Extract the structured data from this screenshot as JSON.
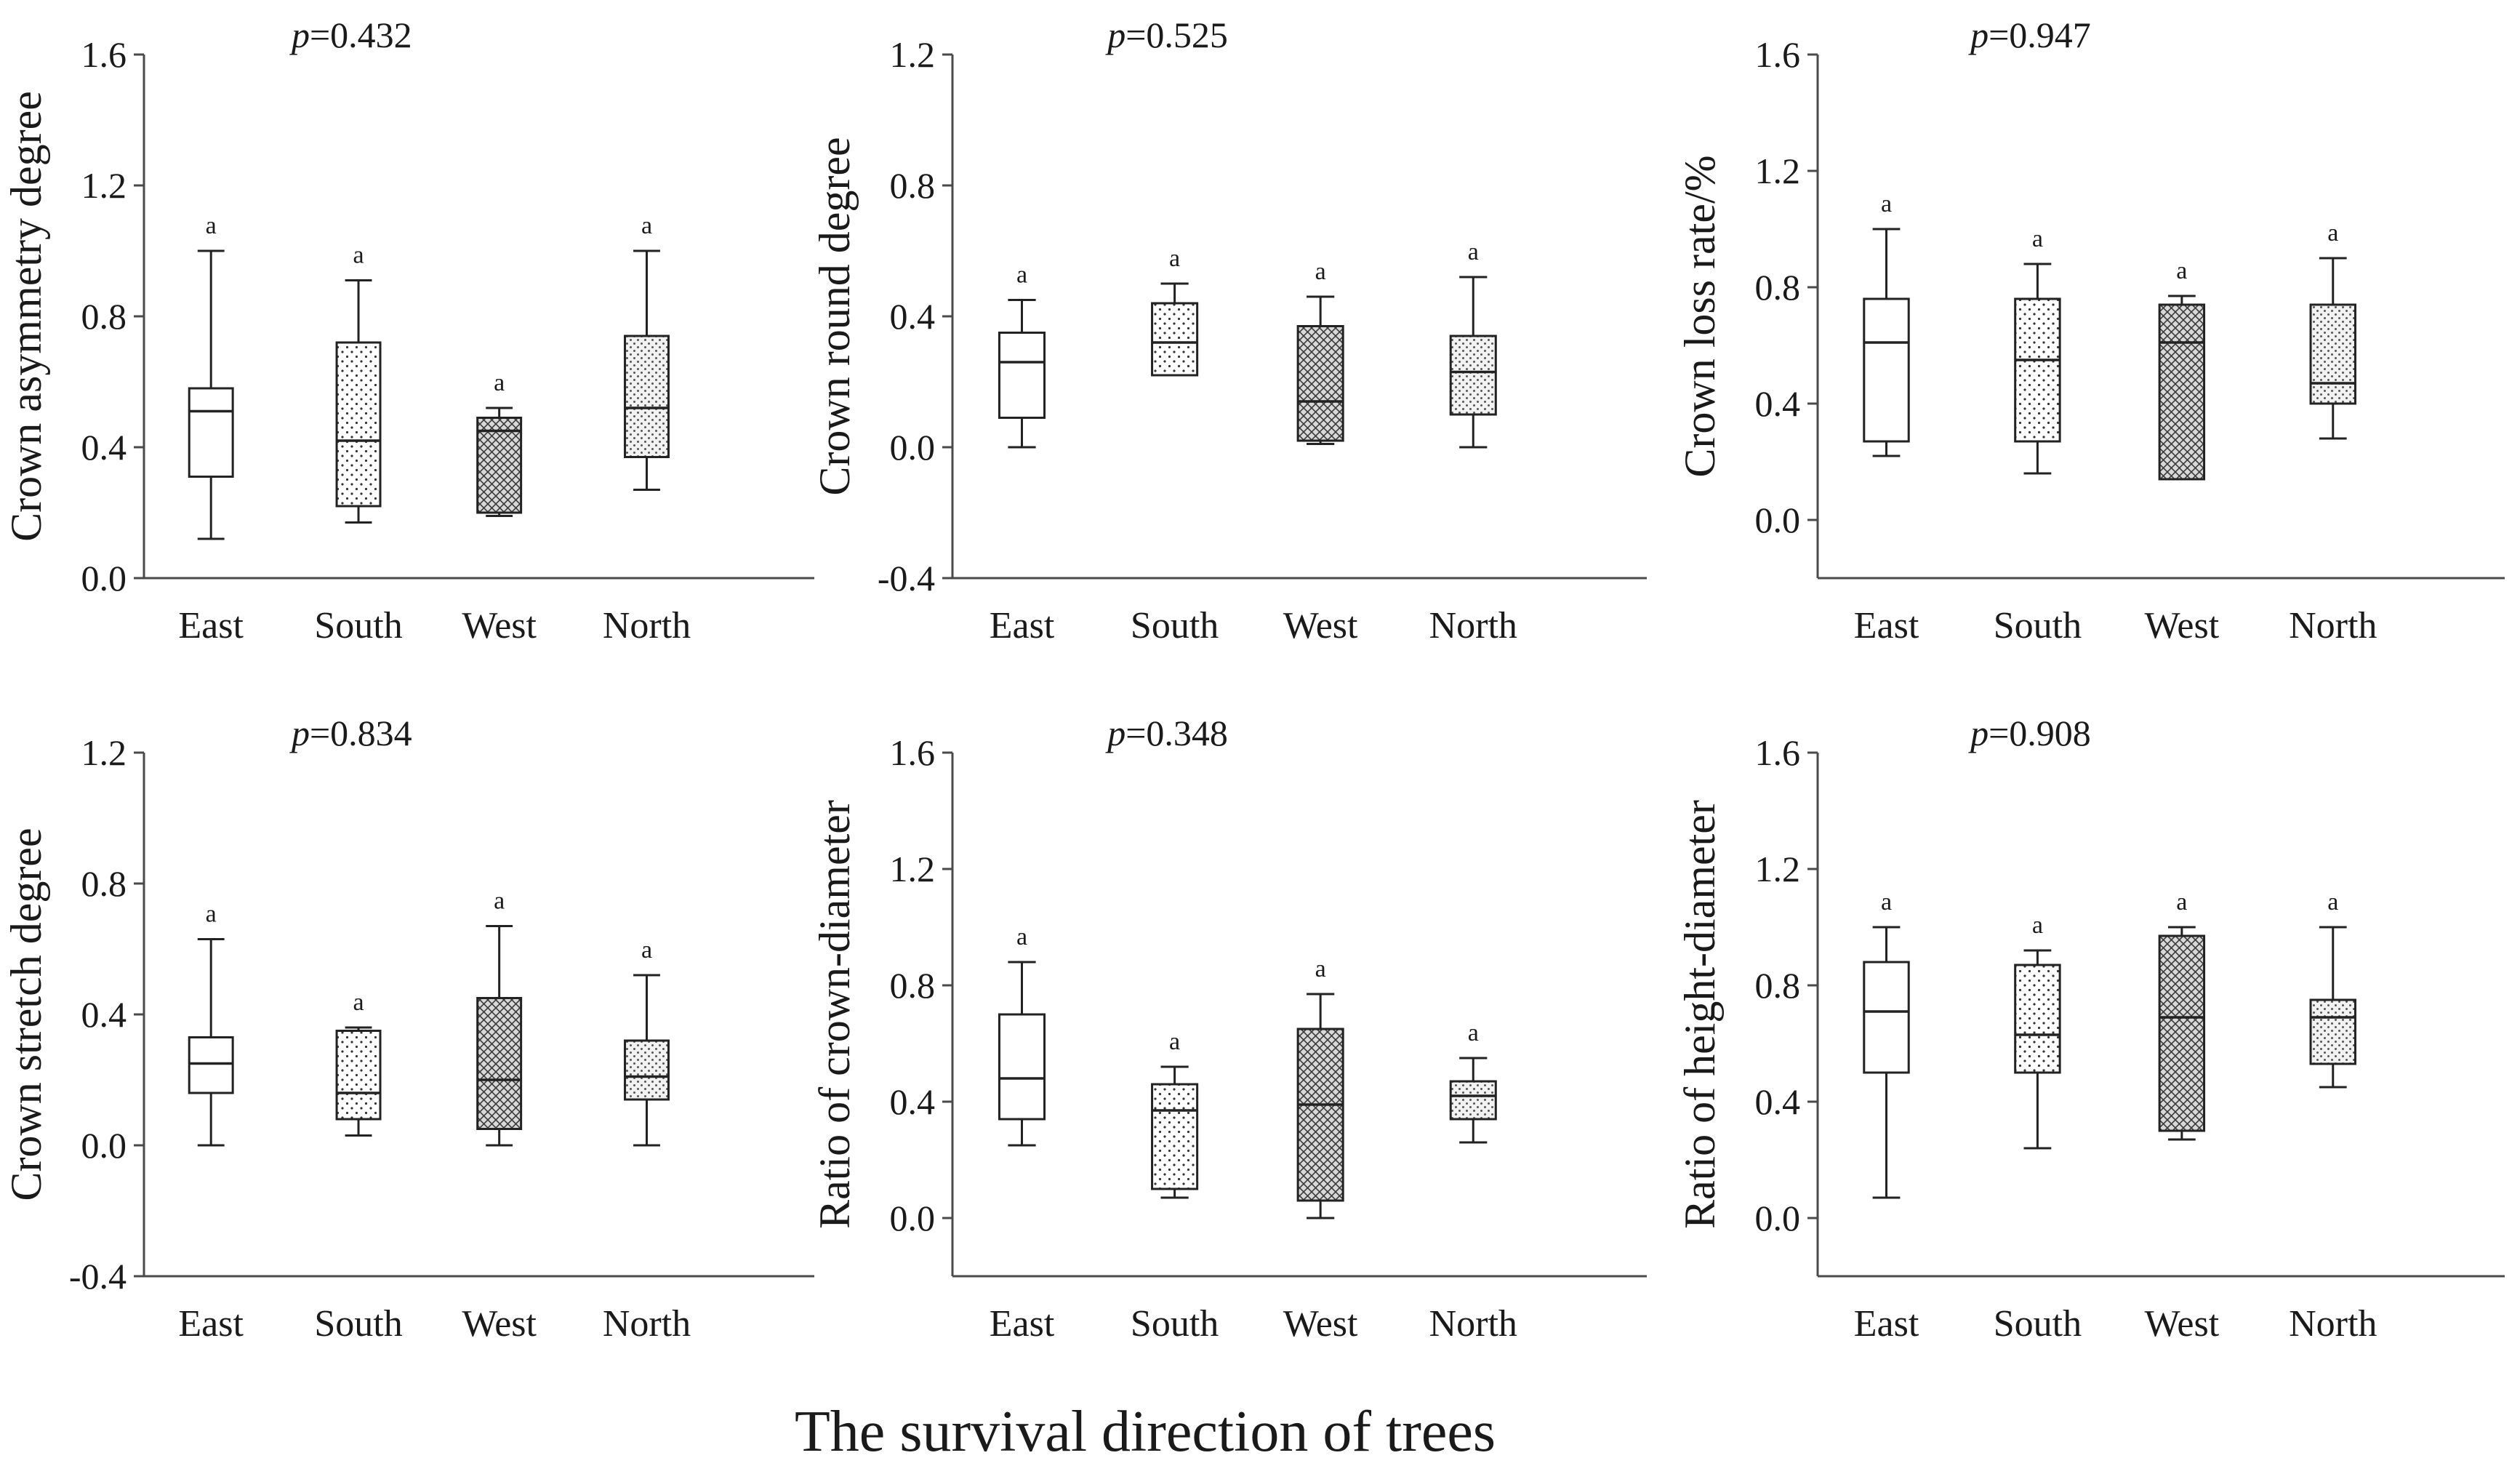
{
  "caption": "The survival direction of trees",
  "chart_data": [
    {
      "type": "box",
      "ylabel": "Crown asymmetry degree",
      "p_prefix": "p",
      "p_value": "=0.432",
      "ylim": [
        0.0,
        1.6
      ],
      "yticks": [
        "0.0",
        "0.4",
        "0.8",
        "1.2",
        "1.6"
      ],
      "categories": [
        "East",
        "South",
        "West",
        "North"
      ],
      "letters": [
        "a",
        "a",
        "a",
        "a"
      ],
      "boxes": [
        {
          "min": 0.12,
          "q1": 0.31,
          "median": 0.51,
          "q3": 0.58,
          "max": 1.0,
          "pattern": "none"
        },
        {
          "min": 0.17,
          "q1": 0.22,
          "median": 0.42,
          "q3": 0.72,
          "max": 0.91,
          "pattern": "dots"
        },
        {
          "min": 0.19,
          "q1": 0.2,
          "median": 0.45,
          "q3": 0.49,
          "max": 0.52,
          "pattern": "cross"
        },
        {
          "min": 0.27,
          "q1": 0.37,
          "median": 0.52,
          "q3": 0.74,
          "max": 1.0,
          "pattern": "dense"
        }
      ]
    },
    {
      "type": "box",
      "ylabel": "Crown round degree",
      "p_prefix": "p",
      "p_value": "=0.525",
      "ylim": [
        -0.4,
        1.2
      ],
      "yticks": [
        "-0.4",
        "0.0",
        "0.4",
        "0.8",
        "1.2"
      ],
      "categories": [
        "East",
        "South",
        "West",
        "North"
      ],
      "letters": [
        "a",
        "a",
        "a",
        "a"
      ],
      "boxes": [
        {
          "min": 0.0,
          "q1": 0.09,
          "median": 0.26,
          "q3": 0.35,
          "max": 0.45,
          "pattern": "none"
        },
        {
          "min": 0.22,
          "q1": 0.22,
          "median": 0.32,
          "q3": 0.44,
          "max": 0.5,
          "pattern": "dots"
        },
        {
          "min": 0.01,
          "q1": 0.02,
          "median": 0.14,
          "q3": 0.37,
          "max": 0.46,
          "pattern": "cross"
        },
        {
          "min": 0.0,
          "q1": 0.1,
          "median": 0.23,
          "q3": 0.34,
          "max": 0.52,
          "pattern": "dense"
        }
      ]
    },
    {
      "type": "box",
      "ylabel": "Crown loss rate/%",
      "p_prefix": "p",
      "p_value": "=0.947",
      "ylim": [
        -0.2,
        1.6
      ],
      "yticks": [
        "0.0",
        "0.4",
        "0.8",
        "1.2",
        "1.6"
      ],
      "categories": [
        "East",
        "South",
        "West",
        "North"
      ],
      "letters": [
        "a",
        "a",
        "a",
        "a"
      ],
      "boxes": [
        {
          "min": 0.22,
          "q1": 0.27,
          "median": 0.61,
          "q3": 0.76,
          "max": 1.0,
          "pattern": "none"
        },
        {
          "min": 0.16,
          "q1": 0.27,
          "median": 0.55,
          "q3": 0.76,
          "max": 0.88,
          "pattern": "dots"
        },
        {
          "min": 0.14,
          "q1": 0.14,
          "median": 0.61,
          "q3": 0.74,
          "max": 0.77,
          "pattern": "cross"
        },
        {
          "min": 0.28,
          "q1": 0.4,
          "median": 0.47,
          "q3": 0.74,
          "max": 0.9,
          "pattern": "dense"
        }
      ]
    },
    {
      "type": "box",
      "ylabel": "Crown stretch degree",
      "p_prefix": "p",
      "p_value": "=0.834",
      "ylim": [
        -0.4,
        1.2
      ],
      "yticks": [
        "-0.4",
        "0.0",
        "0.4",
        "0.8",
        "1.2"
      ],
      "categories": [
        "East",
        "South",
        "West",
        "North"
      ],
      "letters": [
        "a",
        "a",
        "a",
        "a"
      ],
      "boxes": [
        {
          "min": 0.0,
          "q1": 0.16,
          "median": 0.25,
          "q3": 0.33,
          "max": 0.63,
          "pattern": "none"
        },
        {
          "min": 0.03,
          "q1": 0.08,
          "median": 0.16,
          "q3": 0.35,
          "max": 0.36,
          "pattern": "dots"
        },
        {
          "min": 0.0,
          "q1": 0.05,
          "median": 0.2,
          "q3": 0.45,
          "max": 0.67,
          "pattern": "cross"
        },
        {
          "min": 0.0,
          "q1": 0.14,
          "median": 0.21,
          "q3": 0.32,
          "max": 0.52,
          "pattern": "dense"
        }
      ]
    },
    {
      "type": "box",
      "ylabel": "Ratio of crown-diameter",
      "p_prefix": "p",
      "p_value": "=0.348",
      "ylim": [
        -0.2,
        1.6
      ],
      "yticks": [
        "0.0",
        "0.4",
        "0.8",
        "1.2",
        "1.6"
      ],
      "categories": [
        "East",
        "South",
        "West",
        "North"
      ],
      "letters": [
        "a",
        "a",
        "a",
        "a"
      ],
      "boxes": [
        {
          "min": 0.25,
          "q1": 0.34,
          "median": 0.48,
          "q3": 0.7,
          "max": 0.88,
          "pattern": "none"
        },
        {
          "min": 0.07,
          "q1": 0.1,
          "median": 0.37,
          "q3": 0.46,
          "max": 0.52,
          "pattern": "dots"
        },
        {
          "min": 0.0,
          "q1": 0.06,
          "median": 0.39,
          "q3": 0.65,
          "max": 0.77,
          "pattern": "cross"
        },
        {
          "min": 0.26,
          "q1": 0.34,
          "median": 0.42,
          "q3": 0.47,
          "max": 0.55,
          "pattern": "dense"
        }
      ]
    },
    {
      "type": "box",
      "ylabel": "Ratio of height-diameter",
      "p_prefix": "p",
      "p_value": "=0.908",
      "ylim": [
        -0.2,
        1.6
      ],
      "yticks": [
        "0.0",
        "0.4",
        "0.8",
        "1.2",
        "1.6"
      ],
      "categories": [
        "East",
        "South",
        "West",
        "North"
      ],
      "letters": [
        "a",
        "a",
        "a",
        "a"
      ],
      "boxes": [
        {
          "min": 0.07,
          "q1": 0.5,
          "median": 0.71,
          "q3": 0.88,
          "max": 1.0,
          "pattern": "none"
        },
        {
          "min": 0.24,
          "q1": 0.5,
          "median": 0.63,
          "q3": 0.87,
          "max": 0.92,
          "pattern": "dots"
        },
        {
          "min": 0.27,
          "q1": 0.3,
          "median": 0.69,
          "q3": 0.97,
          "max": 1.0,
          "pattern": "cross"
        },
        {
          "min": 0.45,
          "q1": 0.53,
          "median": 0.69,
          "q3": 0.75,
          "max": 1.0,
          "pattern": "dense"
        }
      ]
    }
  ]
}
